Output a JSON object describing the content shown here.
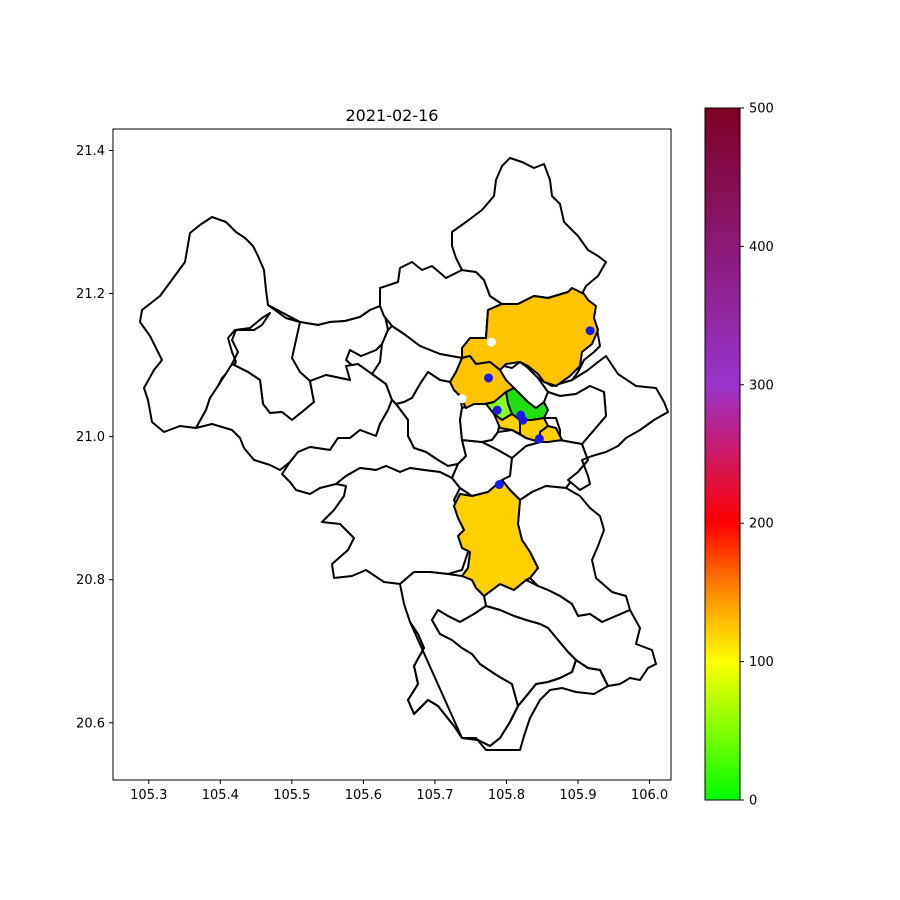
{
  "title": "2021-02-16",
  "map": {
    "xlim": [
      105.25,
      106.03
    ],
    "ylim": [
      20.52,
      21.43
    ],
    "x_ticks": [
      105.3,
      105.4,
      105.5,
      105.6,
      105.7,
      105.8,
      105.9,
      106.0
    ],
    "y_ticks": [
      20.6,
      20.8,
      21.0,
      21.2,
      21.4
    ],
    "x_tick_labels": [
      "105.3",
      "105.4",
      "105.5",
      "105.6",
      "105.7",
      "105.8",
      "105.9",
      "106.0"
    ],
    "y_tick_labels": [
      "20.6",
      "20.8",
      "21.0",
      "21.2",
      "21.4"
    ]
  },
  "colorbar": {
    "min": 0,
    "max": 500,
    "ticks": [
      0,
      100,
      200,
      300,
      400,
      500
    ],
    "tick_labels": [
      "0",
      "100",
      "200",
      "300",
      "400",
      "500"
    ],
    "stops": [
      {
        "value": 0,
        "color": "#00ff00"
      },
      {
        "value": 100,
        "color": "#ffff00"
      },
      {
        "value": 150,
        "color": "#ff8c00"
      },
      {
        "value": 200,
        "color": "#ff0000"
      },
      {
        "value": 300,
        "color": "#9933cc"
      },
      {
        "value": 500,
        "color": "#7e0023"
      }
    ]
  },
  "colors": {
    "filled_orange": "#ffc400",
    "filled_yellow": "#ffd000",
    "filled_green": "#22dd11",
    "filled_lime": "#88ff22",
    "station_blue": "#1a1aee",
    "station_white": "#ffffff"
  },
  "stations": [
    {
      "lon": 105.917,
      "lat": 21.148,
      "type": "blue"
    },
    {
      "lon": 105.775,
      "lat": 21.082,
      "type": "blue"
    },
    {
      "lon": 105.787,
      "lat": 21.037,
      "type": "blue"
    },
    {
      "lon": 105.82,
      "lat": 21.03,
      "type": "blue"
    },
    {
      "lon": 105.823,
      "lat": 21.023,
      "type": "blue"
    },
    {
      "lon": 105.846,
      "lat": 20.997,
      "type": "blue"
    },
    {
      "lon": 105.79,
      "lat": 20.933,
      "type": "blue"
    },
    {
      "lon": 105.779,
      "lat": 21.132,
      "type": "white"
    },
    {
      "lon": 105.738,
      "lat": 21.053,
      "type": "white"
    }
  ]
}
